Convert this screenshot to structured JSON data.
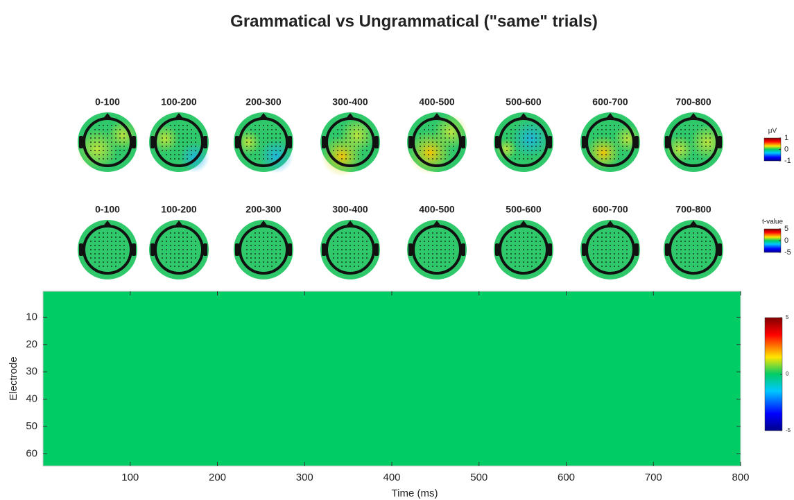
{
  "title": "Grammatical vs Ungrammatical (\"same\" trials)",
  "topo_rows": [
    {
      "labels": [
        "0-100",
        "100-200",
        "200-300",
        "300-400",
        "400-500",
        "500-600",
        "600-700",
        "700-800"
      ],
      "colorbar": {
        "label": "μV",
        "lim": [
          -1,
          1
        ],
        "ticks": [
          1,
          0,
          -1
        ]
      }
    },
    {
      "labels": [
        "0-100",
        "100-200",
        "200-300",
        "300-400",
        "400-500",
        "500-600",
        "600-700",
        "700-800"
      ],
      "colorbar": {
        "label": "t-value",
        "lim": [
          -5,
          5
        ],
        "ticks": [
          5,
          0,
          -5
        ]
      }
    }
  ],
  "chart_data": {
    "type": "heatmap",
    "xlabel": "Time (ms)",
    "ylabel": "Electrode",
    "xlim": [
      0,
      800
    ],
    "xticks": [
      100,
      200,
      300,
      400,
      500,
      600,
      700,
      800
    ],
    "ylim": [
      0.5,
      64.5
    ],
    "yticks": [
      10,
      20,
      30,
      40,
      50,
      60
    ],
    "colorbar": {
      "lim": [
        -5,
        5
      ],
      "ticks": [
        5,
        0,
        -5
      ]
    }
  }
}
